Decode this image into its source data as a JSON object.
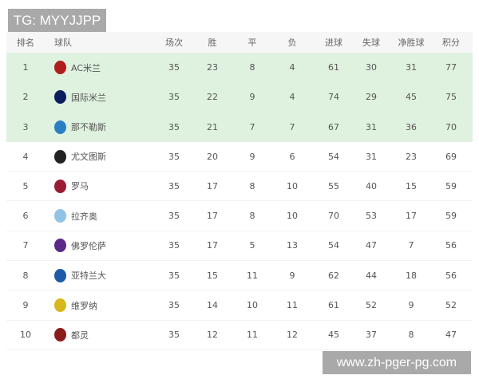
{
  "watermarks": {
    "top": "TG: MYYJJPP",
    "bottom": "www.zh-pger-pg.com"
  },
  "colors": {
    "highlight": "#dff2df",
    "header_bg": "#f6f6f6"
  },
  "headers": [
    "排名",
    "球队",
    "场次",
    "胜",
    "平",
    "负",
    "进球",
    "失球",
    "净胜球",
    "积分"
  ],
  "rows": [
    {
      "rank": "1",
      "team": "AC米兰",
      "logo": "ac-milan-crest-icon",
      "color": "#b01d1d",
      "p": "35",
      "w": "23",
      "d": "8",
      "l": "4",
      "gf": "61",
      "ga": "30",
      "gd": "31",
      "pts": "77"
    },
    {
      "rank": "2",
      "team": "国际米兰",
      "logo": "inter-crest-icon",
      "color": "#0b1d5e",
      "p": "35",
      "w": "22",
      "d": "9",
      "l": "4",
      "gf": "74",
      "ga": "29",
      "gd": "45",
      "pts": "75"
    },
    {
      "rank": "3",
      "team": "那不勒斯",
      "logo": "napoli-crest-icon",
      "color": "#2a7fc4",
      "p": "35",
      "w": "21",
      "d": "7",
      "l": "7",
      "gf": "67",
      "ga": "31",
      "gd": "36",
      "pts": "70"
    },
    {
      "rank": "4",
      "team": "尤文图斯",
      "logo": "juventus-crest-icon",
      "color": "#222222",
      "p": "35",
      "w": "20",
      "d": "9",
      "l": "6",
      "gf": "54",
      "ga": "31",
      "gd": "23",
      "pts": "69"
    },
    {
      "rank": "5",
      "team": "罗马",
      "logo": "roma-crest-icon",
      "color": "#9b1b30",
      "p": "35",
      "w": "17",
      "d": "8",
      "l": "10",
      "gf": "55",
      "ga": "40",
      "gd": "15",
      "pts": "59"
    },
    {
      "rank": "6",
      "team": "拉齐奥",
      "logo": "lazio-crest-icon",
      "color": "#8fc4e6",
      "p": "35",
      "w": "17",
      "d": "8",
      "l": "10",
      "gf": "70",
      "ga": "53",
      "gd": "17",
      "pts": "59"
    },
    {
      "rank": "7",
      "team": "佛罗伦萨",
      "logo": "fiorentina-crest-icon",
      "color": "#5b2a86",
      "p": "35",
      "w": "17",
      "d": "5",
      "l": "13",
      "gf": "54",
      "ga": "47",
      "gd": "7",
      "pts": "56"
    },
    {
      "rank": "8",
      "team": "亚特兰大",
      "logo": "atalanta-crest-icon",
      "color": "#1e5aa8",
      "p": "35",
      "w": "15",
      "d": "11",
      "l": "9",
      "gf": "62",
      "ga": "44",
      "gd": "18",
      "pts": "56"
    },
    {
      "rank": "9",
      "team": "维罗纳",
      "logo": "verona-crest-icon",
      "color": "#d8b81a",
      "p": "35",
      "w": "14",
      "d": "10",
      "l": "11",
      "gf": "61",
      "ga": "52",
      "gd": "9",
      "pts": "52"
    },
    {
      "rank": "10",
      "team": "都灵",
      "logo": "torino-crest-icon",
      "color": "#8a1c1c",
      "p": "35",
      "w": "12",
      "d": "11",
      "l": "12",
      "gf": "45",
      "ga": "37",
      "gd": "8",
      "pts": "47"
    }
  ]
}
